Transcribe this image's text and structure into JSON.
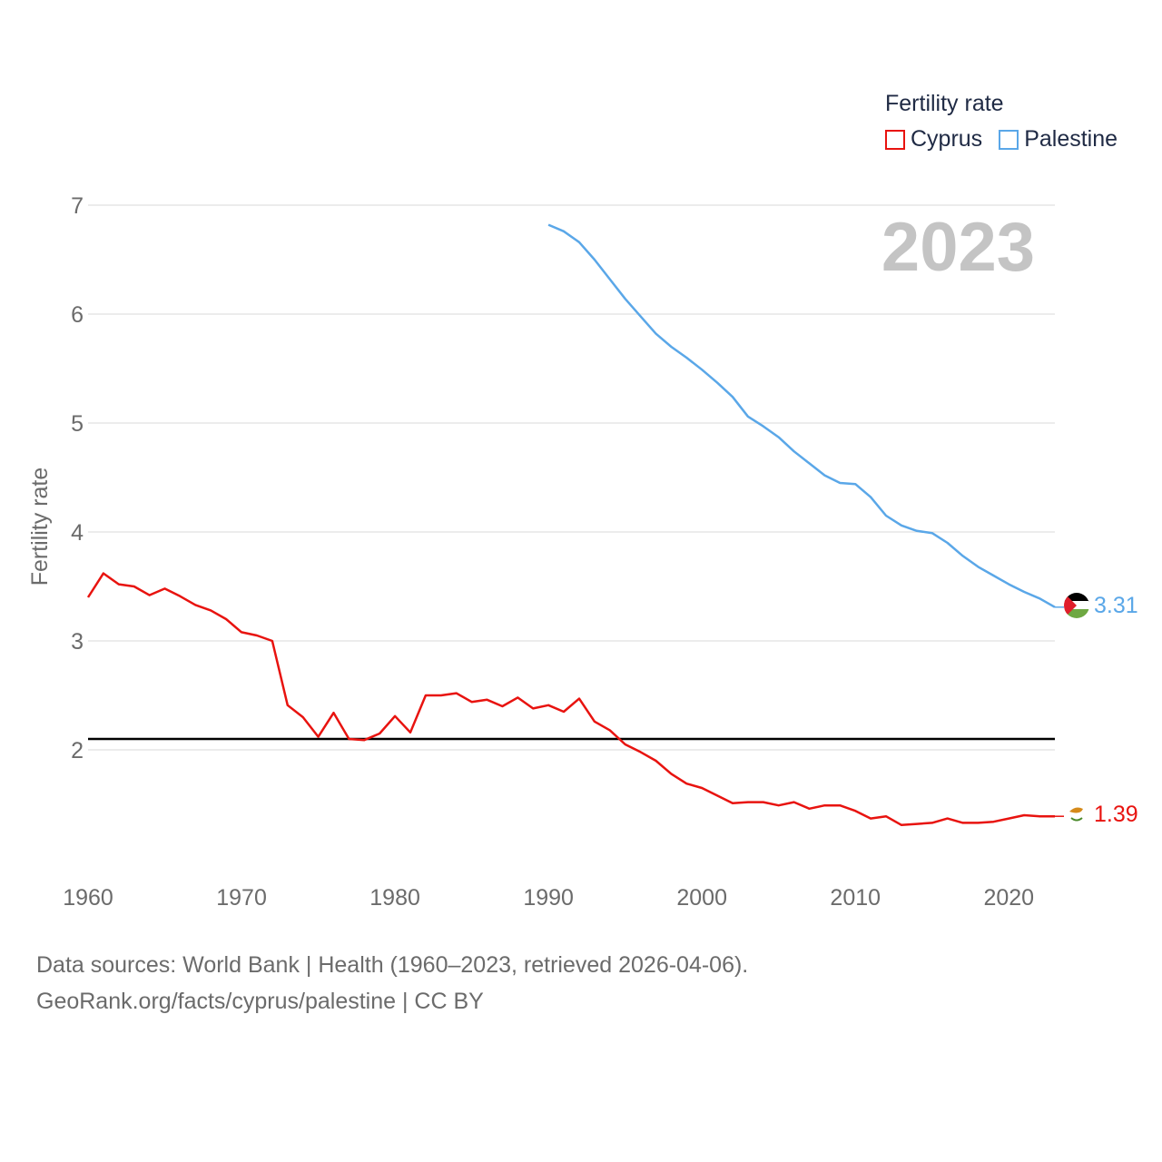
{
  "legend": {
    "title": "Fertility rate",
    "items": [
      "Cyprus",
      "Palestine"
    ]
  },
  "footer": {
    "line1": "Data sources: World Bank | Health (1960–2023, retrieved 2026-04-06).",
    "line2": "GeoRank.org/facts/cyprus/palestine | CC BY"
  },
  "chart_data": {
    "type": "line",
    "title": "",
    "year_label": "2023",
    "xlabel": "",
    "ylabel": "Fertility rate",
    "xlim": [
      1960,
      2023
    ],
    "ylim": [
      0.8,
      7.2
    ],
    "x_ticks": [
      1960,
      1970,
      1980,
      1990,
      2000,
      2010,
      2020
    ],
    "y_ticks": [
      2,
      3,
      4,
      5,
      6,
      7
    ],
    "grid": true,
    "reference_line": {
      "y": 2.1,
      "color": "#000000"
    },
    "legend_position": "top-right",
    "series": [
      {
        "name": "Cyprus",
        "color": "#e8130f",
        "end_label": "1.39",
        "x": [
          1960,
          1961,
          1962,
          1963,
          1964,
          1965,
          1966,
          1967,
          1968,
          1969,
          1970,
          1971,
          1972,
          1973,
          1974,
          1975,
          1976,
          1977,
          1978,
          1979,
          1980,
          1981,
          1982,
          1983,
          1984,
          1985,
          1986,
          1987,
          1988,
          1989,
          1990,
          1991,
          1992,
          1993,
          1994,
          1995,
          1996,
          1997,
          1998,
          1999,
          2000,
          2001,
          2002,
          2003,
          2004,
          2005,
          2006,
          2007,
          2008,
          2009,
          2010,
          2011,
          2012,
          2013,
          2014,
          2015,
          2016,
          2017,
          2018,
          2019,
          2020,
          2021,
          2022,
          2023
        ],
        "values": [
          3.4,
          3.62,
          3.52,
          3.5,
          3.42,
          3.48,
          3.41,
          3.33,
          3.28,
          3.2,
          3.08,
          3.05,
          3.0,
          2.41,
          2.3,
          2.12,
          2.34,
          2.1,
          2.09,
          2.15,
          2.31,
          2.16,
          2.5,
          2.5,
          2.52,
          2.44,
          2.46,
          2.4,
          2.48,
          2.38,
          2.41,
          2.35,
          2.47,
          2.26,
          2.18,
          2.05,
          1.98,
          1.9,
          1.78,
          1.69,
          1.65,
          1.58,
          1.51,
          1.52,
          1.52,
          1.49,
          1.52,
          1.46,
          1.49,
          1.49,
          1.44,
          1.37,
          1.39,
          1.31,
          1.32,
          1.33,
          1.37,
          1.33,
          1.33,
          1.34,
          1.37,
          1.4,
          1.39,
          1.39
        ]
      },
      {
        "name": "Palestine",
        "color": "#5aa7e8",
        "end_label": "3.31",
        "x": [
          1990,
          1991,
          1992,
          1993,
          1994,
          1995,
          1996,
          1997,
          1998,
          1999,
          2000,
          2001,
          2002,
          2003,
          2004,
          2005,
          2006,
          2007,
          2008,
          2009,
          2010,
          2011,
          2012,
          2013,
          2014,
          2015,
          2016,
          2017,
          2018,
          2019,
          2020,
          2021,
          2022,
          2023
        ],
        "values": [
          6.82,
          6.76,
          6.66,
          6.5,
          6.32,
          6.14,
          5.98,
          5.82,
          5.7,
          5.6,
          5.49,
          5.37,
          5.24,
          5.06,
          4.97,
          4.87,
          4.74,
          4.63,
          4.52,
          4.45,
          4.44,
          4.32,
          4.15,
          4.06,
          4.01,
          3.99,
          3.9,
          3.78,
          3.68,
          3.6,
          3.52,
          3.45,
          3.39,
          3.31
        ]
      }
    ]
  }
}
